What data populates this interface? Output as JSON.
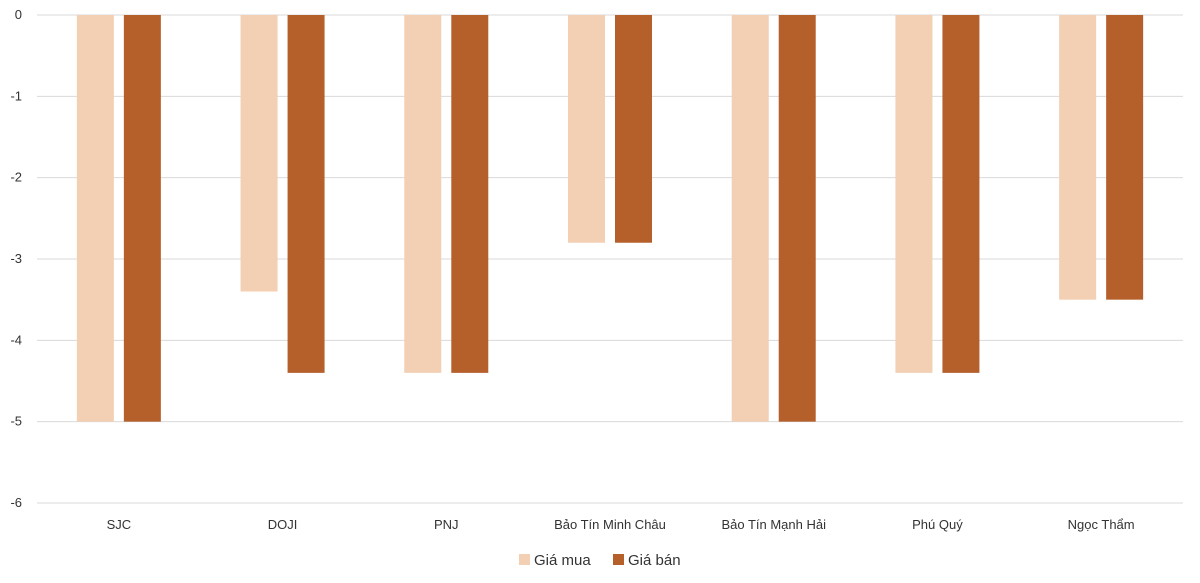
{
  "chart_data": {
    "type": "bar",
    "categories": [
      "SJC",
      "DOJI",
      "PNJ",
      "Bảo Tín Minh Châu",
      "Bảo Tín Mạnh Hải",
      "Phú Quý",
      "Ngọc Thẩm"
    ],
    "series": [
      {
        "name": "Giá mua",
        "color": "#F3CFB3",
        "values": [
          -5,
          -3.4,
          -4.4,
          -2.8,
          -5,
          -4.4,
          -3.5
        ]
      },
      {
        "name": "Giá bán",
        "color": "#B5602A",
        "values": [
          -5,
          -4.4,
          -4.4,
          -2.8,
          -5,
          -4.4,
          -3.5
        ]
      }
    ],
    "ylim": [
      -6,
      0
    ],
    "yticks": [
      0,
      -1,
      -2,
      -3,
      -4,
      -5,
      -6
    ],
    "ytick_labels": [
      "0",
      "-1",
      "-2",
      "-3",
      "-4",
      "-5",
      "-6"
    ],
    "grid": true,
    "gridline_color": "#D9D9D9",
    "legend_position": "bottom",
    "title": "",
    "xlabel": "",
    "ylabel": ""
  }
}
